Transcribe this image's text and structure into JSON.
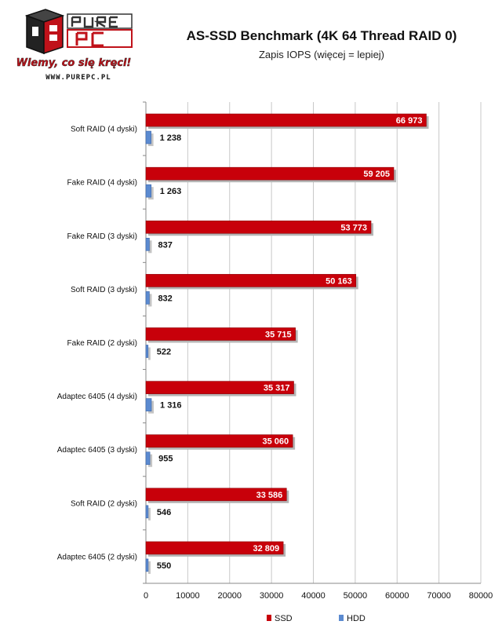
{
  "logo": {
    "brand": "PURE PC",
    "slogan": "Wiemy, co się kręci!",
    "url": "WWW.PUREPC.PL"
  },
  "colors": {
    "ssd": "#c8000a",
    "hdd": "#5b8ad0",
    "grid": "#c8c8c8",
    "logo_red": "#c0121a",
    "logo_dark": "#222222"
  },
  "chart_data": {
    "type": "bar",
    "orientation": "horizontal",
    "title": "AS-SSD Benchmark (4K 64 Thread RAID 0)",
    "subtitle": "Zapis IOPS (więcej = lepiej)",
    "categories": [
      "Soft RAID (4 dyski)",
      "Fake RAID (4 dyski)",
      "Fake RAID (3 dyski)",
      "Soft RAID (3 dyski)",
      "Fake RAID (2 dyski)",
      "Adaptec 6405 (4 dyski)",
      "Adaptec 6405 (3 dyski)",
      "Soft RAID (2 dyski)",
      "Adaptec 6405 (2 dyski)"
    ],
    "series": [
      {
        "name": "SSD",
        "values": [
          66973,
          59205,
          53773,
          50163,
          35715,
          35317,
          35060,
          33586,
          32809
        ],
        "labels": [
          "66 973",
          "59 205",
          "53 773",
          "50 163",
          "35 715",
          "35 317",
          "35 060",
          "33 586",
          "32 809"
        ]
      },
      {
        "name": "HDD",
        "values": [
          1238,
          1263,
          837,
          832,
          522,
          1316,
          955,
          546,
          550
        ],
        "labels": [
          "1 238",
          "1 263",
          "837",
          "832",
          "522",
          "1 316",
          "955",
          "546",
          "550"
        ]
      }
    ],
    "xlim": [
      0,
      80000
    ],
    "xticks": [
      "0",
      "10000",
      "20000",
      "30000",
      "40000",
      "50000",
      "60000",
      "70000",
      "80000"
    ],
    "grid": true,
    "legend_position": "bottom-right"
  }
}
